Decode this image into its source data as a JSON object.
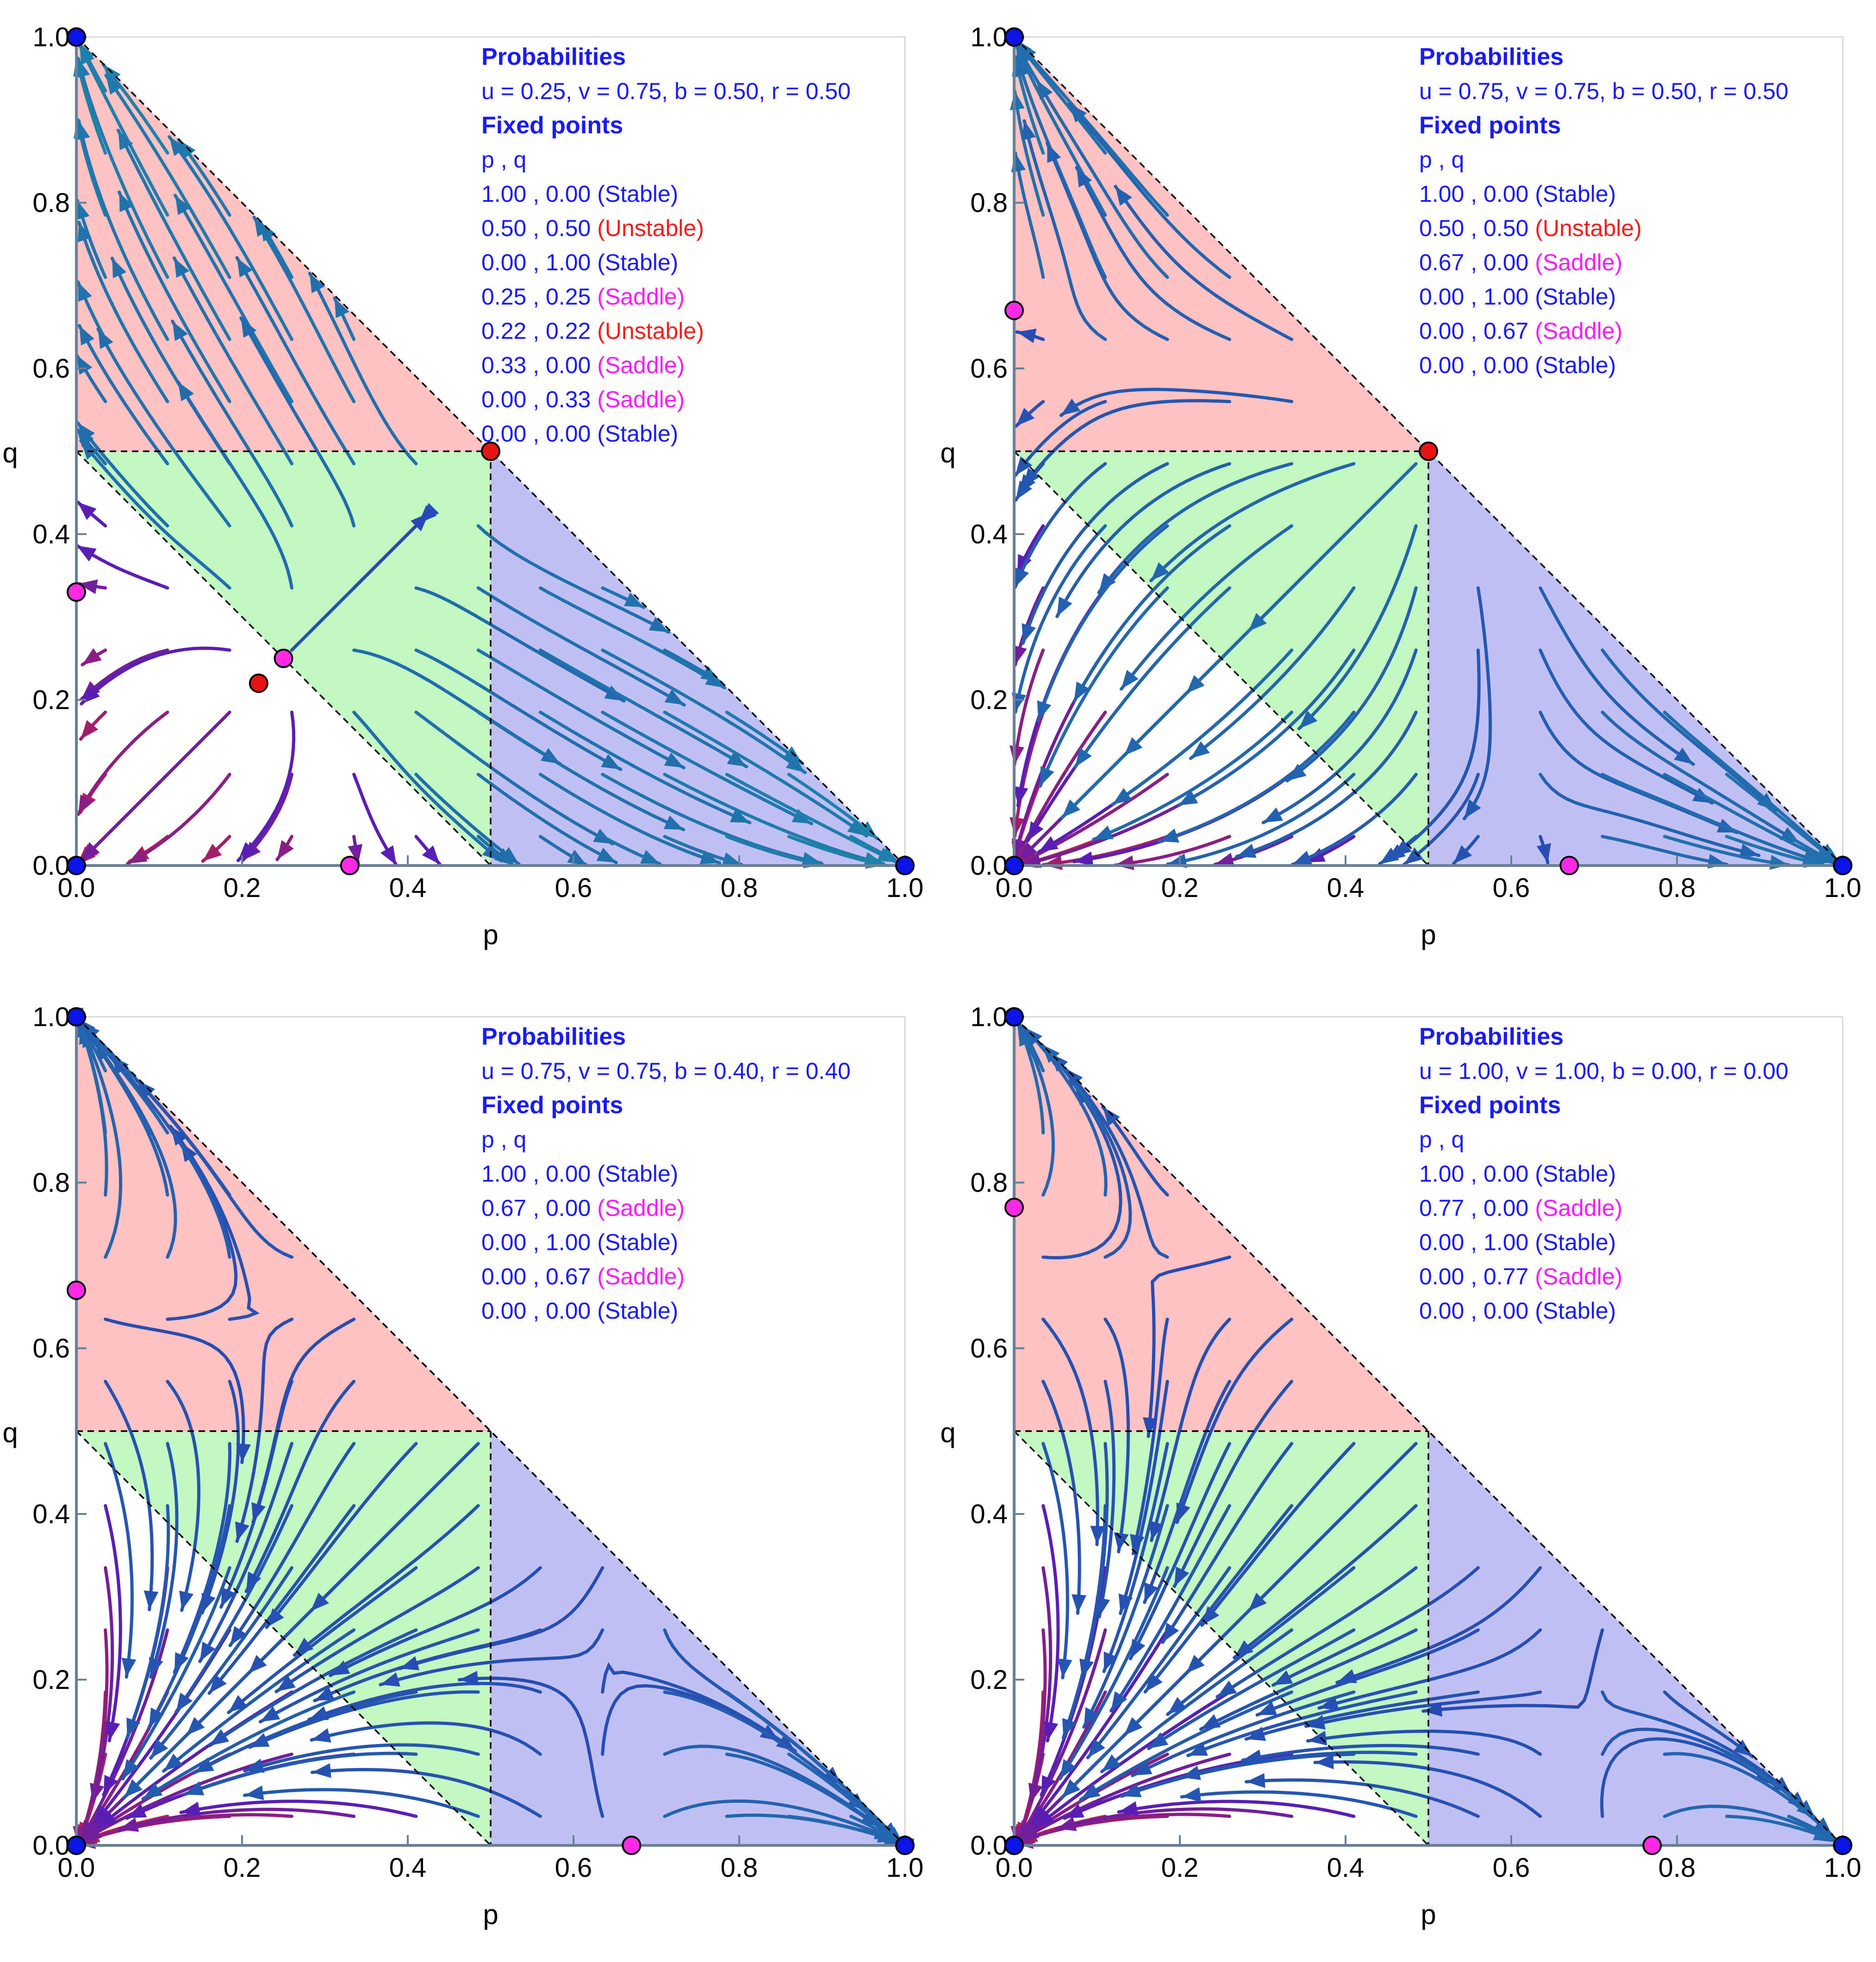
{
  "chart_data": [
    {
      "type": "streamplot",
      "xlabel": "p",
      "ylabel": "q",
      "xlim": [
        0,
        1
      ],
      "ylim": [
        0,
        1
      ],
      "x_ticks": [
        "0.0",
        "0.2",
        "0.4",
        "0.6",
        "0.8",
        "1.0"
      ],
      "y_ticks": [
        "0.0",
        "0.2",
        "0.4",
        "0.6",
        "0.8",
        "1.0"
      ],
      "params": {
        "u": 0.25,
        "v": 0.75,
        "b": 0.5,
        "r": 0.5
      },
      "info_lines": [
        {
          "text": "Probabilities",
          "style": "heading",
          "color": "#1a1aff"
        },
        {
          "text": "u = 0.25, v = 0.75, b = 0.50, r = 0.50",
          "style": "normal",
          "color": "#1a1aff"
        },
        {
          "text": "Fixed points",
          "style": "heading",
          "color": "#1a1aff"
        },
        {
          "text": "p      , q",
          "style": "normal",
          "color": "#1a1aff"
        }
      ],
      "fixed_points": [
        {
          "p": 1.0,
          "q": 0.0,
          "label": "1.00 , 0.00",
          "type": "(Stable)"
        },
        {
          "p": 0.5,
          "q": 0.5,
          "label": "0.50 , 0.50",
          "type": "(Unstable)"
        },
        {
          "p": 0.0,
          "q": 1.0,
          "label": "0.00 , 1.00",
          "type": "(Stable)"
        },
        {
          "p": 0.25,
          "q": 0.25,
          "label": "0.25 , 0.25",
          "type": "(Saddle)"
        },
        {
          "p": 0.22,
          "q": 0.22,
          "label": "0.22 , 0.22",
          "type": "(Unstable)"
        },
        {
          "p": 0.33,
          "q": 0.0,
          "label": "0.33 , 0.00",
          "type": "(Saddle)"
        },
        {
          "p": 0.0,
          "q": 0.33,
          "label": "0.00 , 0.33",
          "type": "(Saddle)"
        },
        {
          "p": 0.0,
          "q": 0.0,
          "label": "0.00 , 0.00",
          "type": "(Stable)"
        }
      ]
    },
    {
      "type": "streamplot",
      "xlabel": "p",
      "ylabel": "q",
      "xlim": [
        0,
        1
      ],
      "ylim": [
        0,
        1
      ],
      "x_ticks": [
        "0.0",
        "0.2",
        "0.4",
        "0.6",
        "0.8",
        "1.0"
      ],
      "y_ticks": [
        "0.0",
        "0.2",
        "0.4",
        "0.6",
        "0.8",
        "1.0"
      ],
      "params": {
        "u": 0.75,
        "v": 0.75,
        "b": 0.5,
        "r": 0.5
      },
      "info_lines": [
        {
          "text": "Probabilities",
          "style": "heading",
          "color": "#1a1aff"
        },
        {
          "text": "u = 0.75, v = 0.75, b = 0.50, r = 0.50",
          "style": "normal",
          "color": "#1a1aff"
        },
        {
          "text": "Fixed points",
          "style": "heading",
          "color": "#1a1aff"
        },
        {
          "text": "p      , q",
          "style": "normal",
          "color": "#1a1aff"
        }
      ],
      "fixed_points": [
        {
          "p": 1.0,
          "q": 0.0,
          "label": "1.00 , 0.00",
          "type": "(Stable)"
        },
        {
          "p": 0.5,
          "q": 0.5,
          "label": "0.50 , 0.50",
          "type": "(Unstable)"
        },
        {
          "p": 0.67,
          "q": 0.0,
          "label": "0.67 , 0.00",
          "type": "(Saddle)"
        },
        {
          "p": 0.0,
          "q": 1.0,
          "label": "0.00 , 1.00",
          "type": "(Stable)"
        },
        {
          "p": 0.0,
          "q": 0.67,
          "label": "0.00 , 0.67",
          "type": "(Saddle)"
        },
        {
          "p": 0.0,
          "q": 0.0,
          "label": "0.00 , 0.00",
          "type": "(Stable)"
        }
      ]
    },
    {
      "type": "streamplot",
      "xlabel": "p",
      "ylabel": "q",
      "xlim": [
        0,
        1
      ],
      "ylim": [
        0,
        1
      ],
      "x_ticks": [
        "0.0",
        "0.2",
        "0.4",
        "0.6",
        "0.8",
        "1.0"
      ],
      "y_ticks": [
        "0.0",
        "0.2",
        "0.4",
        "0.6",
        "0.8",
        "1.0"
      ],
      "params": {
        "u": 0.75,
        "v": 0.75,
        "b": 0.4,
        "r": 0.4
      },
      "info_lines": [
        {
          "text": "Probabilities",
          "style": "heading",
          "color": "#1a1aff"
        },
        {
          "text": "u = 0.75, v = 0.75, b = 0.40, r = 0.40",
          "style": "normal",
          "color": "#1a1aff"
        },
        {
          "text": "Fixed points",
          "style": "heading",
          "color": "#1a1aff"
        },
        {
          "text": "p      , q",
          "style": "normal",
          "color": "#1a1aff"
        }
      ],
      "fixed_points": [
        {
          "p": 1.0,
          "q": 0.0,
          "label": "1.00 , 0.00",
          "type": "(Stable)"
        },
        {
          "p": 0.67,
          "q": 0.0,
          "label": "0.67 , 0.00",
          "type": "(Saddle)"
        },
        {
          "p": 0.0,
          "q": 1.0,
          "label": "0.00 , 1.00",
          "type": "(Stable)"
        },
        {
          "p": 0.0,
          "q": 0.67,
          "label": "0.00 , 0.67",
          "type": "(Saddle)"
        },
        {
          "p": 0.0,
          "q": 0.0,
          "label": "0.00 , 0.00",
          "type": "(Stable)"
        }
      ]
    },
    {
      "type": "streamplot",
      "xlabel": "p",
      "ylabel": "q",
      "xlim": [
        0,
        1
      ],
      "ylim": [
        0,
        1
      ],
      "x_ticks": [
        "0.0",
        "0.2",
        "0.4",
        "0.6",
        "0.8",
        "1.0"
      ],
      "y_ticks": [
        "0.0",
        "0.2",
        "0.4",
        "0.6",
        "0.8",
        "1.0"
      ],
      "params": {
        "u": 1.0,
        "v": 1.0,
        "b": 0.0,
        "r": 0.0
      },
      "info_lines": [
        {
          "text": "Probabilities",
          "style": "heading",
          "color": "#1a1aff"
        },
        {
          "text": "u = 1.00, v = 1.00, b = 0.00, r = 0.00",
          "style": "normal",
          "color": "#1a1aff"
        },
        {
          "text": "Fixed points",
          "style": "heading",
          "color": "#1a1aff"
        },
        {
          "text": "p      , q",
          "style": "normal",
          "color": "#1a1aff"
        }
      ],
      "fixed_points": [
        {
          "p": 1.0,
          "q": 0.0,
          "label": "1.00 , 0.00",
          "type": "(Stable)"
        },
        {
          "p": 0.77,
          "q": 0.0,
          "label": "0.77 , 0.00",
          "type": "(Saddle)"
        },
        {
          "p": 0.0,
          "q": 1.0,
          "label": "0.00 , 1.00",
          "type": "(Stable)"
        },
        {
          "p": 0.0,
          "q": 0.77,
          "label": "0.00 , 0.77",
          "type": "(Saddle)"
        },
        {
          "p": 0.0,
          "q": 0.0,
          "label": "0.00 , 0.00",
          "type": "(Stable)"
        }
      ]
    }
  ],
  "styles": {
    "colors": {
      "region_red": "#ffc2c2",
      "region_green": "#c2f7c2",
      "region_blue": "#c0c0f5",
      "stable": "#0a14e6",
      "unstable": "#e61414",
      "saddle": "#ff2ae6",
      "label_blue": "#1a1aff",
      "label_red": "#ff1a1a",
      "label_magenta": "#ff1aff"
    }
  }
}
